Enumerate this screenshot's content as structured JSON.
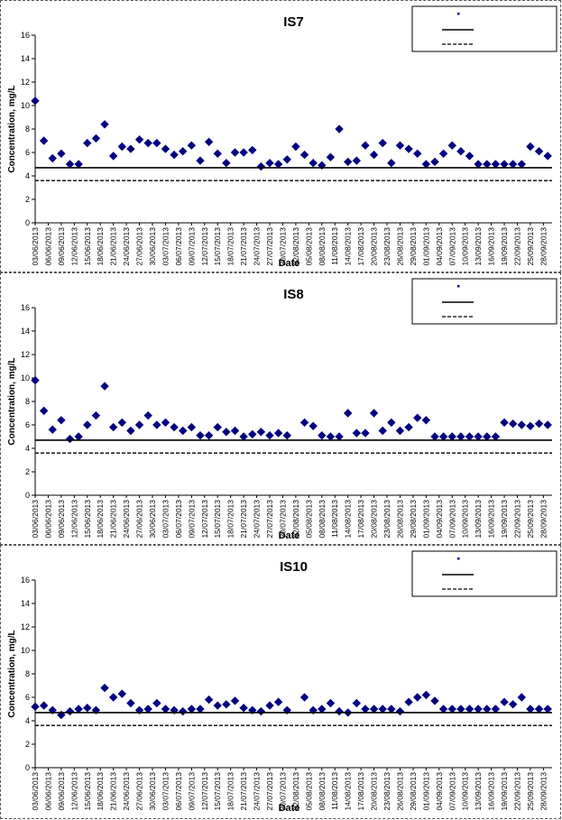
{
  "chart_data": [
    {
      "type": "scatter",
      "title": "IS7",
      "xlabel": "Date",
      "ylabel": "Concentration, mg/L",
      "ylim": [
        0,
        16
      ],
      "yticks": [
        0,
        2,
        4,
        6,
        8,
        10,
        12,
        14,
        16
      ],
      "grid": false,
      "legend": "top-right",
      "xlim": [
        "03/06/2013",
        "30/09/2013"
      ],
      "tick_labels": [
        "03/06/2013",
        "06/06/2013",
        "09/06/2013",
        "12/06/2013",
        "15/06/2013",
        "18/06/2013",
        "21/06/2013",
        "24/06/2013",
        "27/06/2013",
        "30/06/2013",
        "03/07/2013",
        "06/07/2013",
        "09/07/2013",
        "12/07/2013",
        "15/07/2013",
        "18/07/2013",
        "21/07/2013",
        "24/07/2013",
        "27/07/2013",
        "30/07/2013",
        "02/08/2013",
        "05/08/2013",
        "08/08/2013",
        "11/08/2013",
        "14/08/2013",
        "17/08/2013",
        "20/08/2013",
        "23/08/2013",
        "26/08/2013",
        "29/08/2013",
        "01/09/2013",
        "04/09/2013",
        "07/09/2013",
        "10/09/2013",
        "13/09/2013",
        "16/09/2013",
        "19/09/2013",
        "22/09/2013",
        "25/09/2013",
        "28/09/2013"
      ],
      "marker_color": "#000080",
      "series": [
        {
          "kind": "points",
          "x": [
            "03/06/2013",
            "05/06/2013",
            "07/06/2013",
            "09/06/2013",
            "11/06/2013",
            "13/06/2013",
            "15/06/2013",
            "17/06/2013",
            "19/06/2013",
            "21/06/2013",
            "23/06/2013",
            "25/06/2013",
            "27/06/2013",
            "29/06/2013",
            "01/07/2013",
            "03/07/2013",
            "05/07/2013",
            "07/07/2013",
            "09/07/2013",
            "11/07/2013",
            "13/07/2013",
            "15/07/2013",
            "17/07/2013",
            "19/07/2013",
            "21/07/2013",
            "23/07/2013",
            "25/07/2013",
            "27/07/2013",
            "29/07/2013",
            "31/07/2013",
            "02/08/2013",
            "04/08/2013",
            "06/08/2013",
            "08/08/2013",
            "10/08/2013",
            "12/08/2013",
            "14/08/2013",
            "16/08/2013",
            "18/08/2013",
            "20/08/2013",
            "22/08/2013",
            "24/08/2013",
            "26/08/2013",
            "28/08/2013",
            "30/08/2013",
            "01/09/2013",
            "03/09/2013",
            "05/09/2013",
            "07/09/2013",
            "09/09/2013",
            "11/09/2013",
            "13/09/2013",
            "15/09/2013",
            "17/09/2013",
            "19/09/2013",
            "21/09/2013",
            "23/09/2013",
            "25/09/2013",
            "27/09/2013",
            "29/09/2013"
          ],
          "y": [
            10.4,
            7.0,
            5.5,
            5.9,
            5.0,
            5.0,
            6.8,
            7.2,
            8.4,
            5.7,
            6.5,
            6.3,
            7.1,
            6.8,
            6.8,
            6.3,
            5.8,
            6.1,
            6.6,
            5.3,
            6.9,
            5.9,
            5.1,
            6.0,
            6.0,
            6.2,
            4.8,
            5.1,
            5.0,
            5.4,
            6.5,
            5.8,
            5.1,
            4.9,
            5.6,
            8.0,
            5.2,
            5.3,
            6.6,
            5.8,
            6.8,
            5.1,
            6.6,
            6.3,
            5.9,
            5.0,
            5.2,
            5.9,
            6.6,
            6.1,
            5.7,
            5.0,
            5.0,
            5.0,
            5.0,
            5.0,
            5.0,
            6.5,
            6.1,
            5.7
          ]
        },
        {
          "kind": "solid-line",
          "y": 4.7
        },
        {
          "kind": "dashed-line",
          "y": 3.6
        }
      ]
    },
    {
      "type": "scatter",
      "title": "IS8",
      "xlabel": "Date",
      "ylabel": "Concentration, mg/L",
      "ylim": [
        0,
        16
      ],
      "yticks": [
        0,
        2,
        4,
        6,
        8,
        10,
        12,
        14,
        16
      ],
      "grid": false,
      "legend": "top-right",
      "xlim": [
        "03/06/2013",
        "30/09/2013"
      ],
      "tick_labels": [
        "03/06/2013",
        "06/06/2013",
        "09/06/2013",
        "12/06/2013",
        "15/06/2013",
        "18/06/2013",
        "21/06/2013",
        "24/06/2013",
        "27/06/2013",
        "30/06/2013",
        "03/07/2013",
        "06/07/2013",
        "09/07/2013",
        "12/07/2013",
        "15/07/2013",
        "18/07/2013",
        "21/07/2013",
        "24/07/2013",
        "27/07/2013",
        "30/07/2013",
        "02/08/2013",
        "05/08/2013",
        "08/08/2013",
        "11/08/2013",
        "14/08/2013",
        "17/08/2013",
        "20/08/2013",
        "23/08/2013",
        "26/08/2013",
        "29/08/2013",
        "01/09/2013",
        "04/09/2013",
        "07/09/2013",
        "10/09/2013",
        "13/09/2013",
        "16/09/2013",
        "19/09/2013",
        "22/09/2013",
        "25/09/2013",
        "28/09/2013"
      ],
      "marker_color": "#000080",
      "series": [
        {
          "kind": "points",
          "x": [
            "03/06/2013",
            "05/06/2013",
            "07/06/2013",
            "09/06/2013",
            "11/06/2013",
            "13/06/2013",
            "15/06/2013",
            "17/06/2013",
            "19/06/2013",
            "21/06/2013",
            "23/06/2013",
            "25/06/2013",
            "27/06/2013",
            "29/06/2013",
            "01/07/2013",
            "03/07/2013",
            "05/07/2013",
            "07/07/2013",
            "09/07/2013",
            "11/07/2013",
            "13/07/2013",
            "15/07/2013",
            "17/07/2013",
            "19/07/2013",
            "21/07/2013",
            "23/07/2013",
            "25/07/2013",
            "27/07/2013",
            "29/07/2013",
            "31/07/2013",
            "04/08/2013",
            "06/08/2013",
            "08/08/2013",
            "10/08/2013",
            "12/08/2013",
            "14/08/2013",
            "16/08/2013",
            "18/08/2013",
            "20/08/2013",
            "22/08/2013",
            "24/08/2013",
            "26/08/2013",
            "28/08/2013",
            "30/08/2013",
            "01/09/2013",
            "03/09/2013",
            "05/09/2013",
            "07/09/2013",
            "09/09/2013",
            "11/09/2013",
            "13/09/2013",
            "15/09/2013",
            "17/09/2013",
            "19/09/2013",
            "21/09/2013",
            "23/09/2013",
            "25/09/2013",
            "27/09/2013",
            "29/09/2013"
          ],
          "y": [
            9.8,
            7.2,
            5.6,
            6.4,
            4.8,
            5.0,
            6.0,
            6.8,
            9.3,
            5.8,
            6.2,
            5.5,
            6.0,
            6.8,
            6.0,
            6.2,
            5.8,
            5.5,
            5.8,
            5.1,
            5.1,
            5.8,
            5.4,
            5.5,
            5.0,
            5.2,
            5.4,
            5.1,
            5.3,
            5.1,
            6.2,
            5.9,
            5.1,
            5.0,
            5.0,
            7.0,
            5.3,
            5.3,
            7.0,
            5.5,
            6.2,
            5.5,
            5.8,
            6.6,
            6.4,
            5.0,
            5.0,
            5.0,
            5.0,
            5.0,
            5.0,
            5.0,
            5.0,
            6.2,
            6.1,
            6.0,
            5.9,
            6.1,
            6.0
          ]
        },
        {
          "kind": "solid-line",
          "y": 4.7
        },
        {
          "kind": "dashed-line",
          "y": 3.6
        }
      ]
    },
    {
      "type": "scatter",
      "title": "IS10",
      "xlabel": "Date",
      "ylabel": "Concentration, mg/L",
      "ylim": [
        0,
        16
      ],
      "yticks": [
        0,
        2,
        4,
        6,
        8,
        10,
        12,
        14,
        16
      ],
      "grid": false,
      "legend": "top-right",
      "xlim": [
        "03/06/2013",
        "30/09/2013"
      ],
      "tick_labels": [
        "03/06/2013",
        "06/06/2013",
        "09/06/2013",
        "12/06/2013",
        "15/06/2013",
        "18/06/2013",
        "21/06/2013",
        "24/06/2013",
        "27/06/2013",
        "30/06/2013",
        "03/07/2013",
        "06/07/2013",
        "09/07/2013",
        "12/07/2013",
        "15/07/2013",
        "18/07/2013",
        "21/07/2013",
        "24/07/2013",
        "27/07/2013",
        "30/07/2013",
        "02/08/2013",
        "05/08/2013",
        "08/08/2013",
        "11/08/2013",
        "14/08/2013",
        "17/08/2013",
        "20/08/2013",
        "23/08/2013",
        "26/08/2013",
        "29/08/2013",
        "01/09/2013",
        "04/09/2013",
        "07/09/2013",
        "10/09/2013",
        "13/09/2013",
        "16/09/2013",
        "19/09/2013",
        "22/09/2013",
        "25/09/2013",
        "28/09/2013"
      ],
      "marker_color": "#000080",
      "series": [
        {
          "kind": "points",
          "x": [
            "03/06/2013",
            "05/06/2013",
            "07/06/2013",
            "09/06/2013",
            "11/06/2013",
            "13/06/2013",
            "15/06/2013",
            "17/06/2013",
            "19/06/2013",
            "21/06/2013",
            "23/06/2013",
            "25/06/2013",
            "27/06/2013",
            "29/06/2013",
            "01/07/2013",
            "03/07/2013",
            "05/07/2013",
            "07/07/2013",
            "09/07/2013",
            "11/07/2013",
            "13/07/2013",
            "15/07/2013",
            "17/07/2013",
            "19/07/2013",
            "21/07/2013",
            "23/07/2013",
            "25/07/2013",
            "27/07/2013",
            "29/07/2013",
            "31/07/2013",
            "04/08/2013",
            "06/08/2013",
            "08/08/2013",
            "10/08/2013",
            "12/08/2013",
            "14/08/2013",
            "16/08/2013",
            "18/08/2013",
            "20/08/2013",
            "22/08/2013",
            "24/08/2013",
            "26/08/2013",
            "28/08/2013",
            "30/08/2013",
            "01/09/2013",
            "03/09/2013",
            "05/09/2013",
            "07/09/2013",
            "09/09/2013",
            "11/09/2013",
            "13/09/2013",
            "15/09/2013",
            "17/09/2013",
            "19/09/2013",
            "21/09/2013",
            "23/09/2013",
            "25/09/2013",
            "27/09/2013",
            "29/09/2013"
          ],
          "y": [
            5.2,
            5.3,
            4.9,
            4.5,
            4.8,
            5.0,
            5.1,
            4.9,
            6.8,
            6.0,
            6.3,
            5.5,
            4.9,
            5.0,
            5.5,
            5.0,
            4.9,
            4.8,
            5.0,
            5.0,
            5.8,
            5.3,
            5.4,
            5.7,
            5.1,
            4.9,
            4.8,
            5.3,
            5.6,
            4.9,
            6.0,
            4.9,
            5.0,
            5.5,
            4.8,
            4.7,
            5.5,
            5.0,
            5.0,
            5.0,
            5.0,
            4.8,
            5.6,
            6.0,
            6.2,
            5.7,
            5.0,
            5.0,
            5.0,
            5.0,
            5.0,
            5.0,
            5.0,
            5.6,
            5.4,
            6.0,
            5.0,
            5.0,
            5.0
          ]
        },
        {
          "kind": "solid-line",
          "y": 4.7
        },
        {
          "kind": "dashed-line",
          "y": 3.6
        }
      ]
    }
  ]
}
